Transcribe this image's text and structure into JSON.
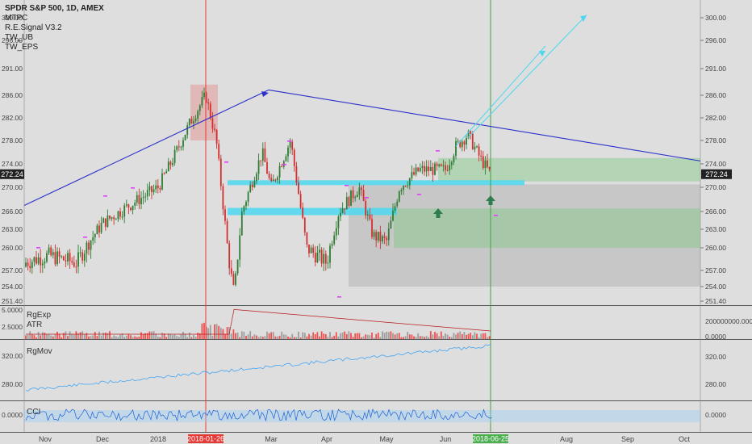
{
  "header": {
    "title": "SPDR S&P 500, 1D, AMEX",
    "indicators": [
      "MTPC",
      "R.E.Signal V3.2",
      "TW_UB",
      "TW_EPS"
    ]
  },
  "panes": {
    "volume": {
      "labels": [
        "RgExp",
        "ATR"
      ]
    },
    "mov": {
      "label": "RgMov"
    },
    "cci": {
      "label": "CCI"
    }
  },
  "colors": {
    "background": "#dedede",
    "up": "#2e7d32",
    "down": "#d32f2f",
    "trendline": "#2b2fc9",
    "projection": "#4dd8f0",
    "red_vline": "#e53935",
    "green_vline": "#43a047",
    "last_price_bg": "#222222"
  },
  "chart_data": [
    {
      "type": "candlestick",
      "title": "SPDR S&P 500, 1D, AMEX",
      "y_ticks_right": [
        251.4,
        254.0,
        257.0,
        260.0,
        263.0,
        266.0,
        270.0,
        274.0,
        278.0,
        282.0,
        286.0,
        291.0,
        296.0,
        300.0
      ],
      "y_ticks_left": [
        251.4,
        254.0,
        257.0,
        260.0,
        263.0,
        266.0,
        270.0,
        274.0,
        278.0,
        282.0,
        286.0,
        291.0,
        296.0,
        300.0
      ],
      "last_price_label": "272.24",
      "ylim": [
        251.4,
        300.0
      ],
      "x_months": [
        "Nov",
        "Dec",
        "2018",
        "Mar",
        "Apr",
        "May",
        "Jun",
        "Aug",
        "Sep",
        "Oct"
      ],
      "highlight_dates": [
        "2018-01-26",
        "2018-06-25"
      ],
      "series_close_approx": [
        {
          "date": "Nov",
          "close": 258.5
        },
        {
          "date": "Dec",
          "close": 264.0
        },
        {
          "date": "2018",
          "close": 270.0
        },
        {
          "date": "2018-01-26",
          "close": 286.5
        },
        {
          "date": "Feb low",
          "close": 253.0
        },
        {
          "date": "Mar",
          "close": 274.0
        },
        {
          "date": "Apr",
          "close": 261.0
        },
        {
          "date": "May",
          "close": 268.0
        },
        {
          "date": "Jun",
          "close": 277.0
        },
        {
          "date": "2018-06-25",
          "close": 272.24
        }
      ]
    },
    {
      "type": "bar",
      "name": "RgExp",
      "y_ticks_left": [
        "5.0000",
        "2.5000"
      ],
      "y_ticks_right": [
        "200000000.0000",
        "0.0000"
      ]
    },
    {
      "type": "line",
      "name": "RgMov",
      "y_ticks_left": [
        "320.00",
        "280.00"
      ],
      "y_ticks_right": [
        "320.00",
        "280.00"
      ]
    },
    {
      "type": "line",
      "name": "CCI",
      "y_ticks_left": [
        "0.0000"
      ],
      "y_ticks_right": [
        "0.0000"
      ]
    }
  ]
}
